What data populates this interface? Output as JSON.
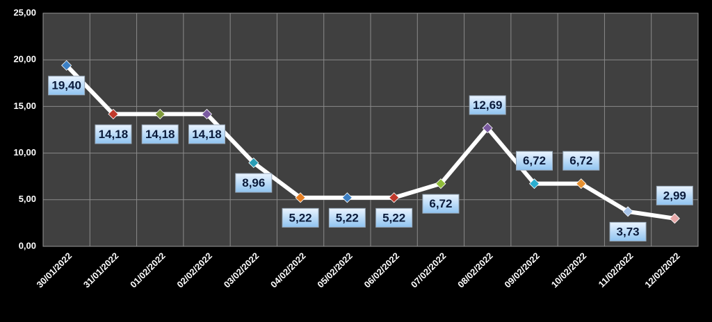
{
  "chart_data": {
    "type": "line",
    "categories": [
      "30/01/2022",
      "31/01/2022",
      "01/02/2022",
      "02/02/2022",
      "03/02/2022",
      "04/02/2022",
      "05/02/2022",
      "06/02/2022",
      "07/02/2022",
      "08/02/2022",
      "09/02/2022",
      "10/02/2022",
      "11/02/2022",
      "12/02/2022"
    ],
    "values": [
      19.4,
      14.18,
      14.18,
      14.18,
      8.96,
      5.22,
      5.22,
      5.22,
      6.72,
      12.69,
      6.72,
      6.72,
      3.73,
      2.99
    ],
    "value_labels": [
      "19,40",
      "14,18",
      "14,18",
      "14,18",
      "8,96",
      "5,22",
      "5,22",
      "5,22",
      "6,72",
      "12,69",
      "6,72",
      "6,72",
      "3,73",
      "2,99"
    ],
    "color": "#ffffff",
    "point_colors": [
      "#3b7fc4",
      "#c0392b",
      "#7f9a3a",
      "#7a5aa0",
      "#2a9db5",
      "#e67e22",
      "#3b7fc4",
      "#c0392b",
      "#8fbc3a",
      "#7a5aa0",
      "#2aaed0",
      "#e69030",
      "#a8c4e8",
      "#e8a8a8"
    ],
    "ylim": [
      0,
      25
    ],
    "yticks": [
      {
        "value": 0,
        "label": "0,00"
      },
      {
        "value": 5,
        "label": "5,00"
      },
      {
        "value": 10,
        "label": "10,00"
      },
      {
        "value": 15,
        "label": "15,00"
      },
      {
        "value": 20,
        "label": "20,00"
      },
      {
        "value": 25,
        "label": "25,00"
      }
    ],
    "grid": true
  }
}
